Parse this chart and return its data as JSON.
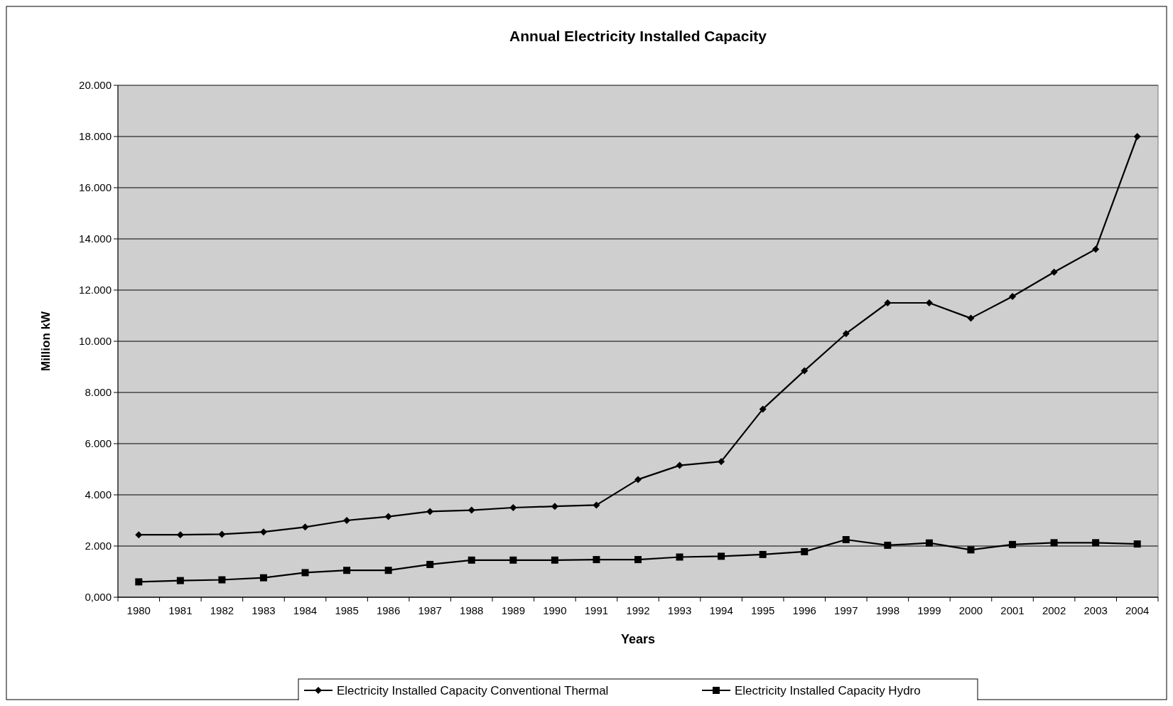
{
  "chart_data": {
    "type": "line",
    "title": "Annual Electricity Installed Capacity",
    "xlabel": "Years",
    "ylabel": "Million kW",
    "categories": [
      "1980",
      "1981",
      "1982",
      "1983",
      "1984",
      "1985",
      "1986",
      "1987",
      "1988",
      "1989",
      "1990",
      "1991",
      "1992",
      "1993",
      "1994",
      "1995",
      "1996",
      "1997",
      "1998",
      "1999",
      "2000",
      "2001",
      "2002",
      "2003",
      "2004"
    ],
    "series": [
      {
        "name": "Electricity Installed Capacity Conventional Thermal",
        "color": "#000000",
        "marker": "diamond",
        "values": [
          2.44,
          2.44,
          2.46,
          2.55,
          2.74,
          3.0,
          3.15,
          3.35,
          3.4,
          3.5,
          3.55,
          3.6,
          4.6,
          5.15,
          5.3,
          7.35,
          8.85,
          10.3,
          11.5,
          11.5,
          10.9,
          11.75,
          12.7,
          13.6,
          18.0
        ]
      },
      {
        "name": "Electricity Installed Capacity Hydro",
        "color": "#000000",
        "marker": "square",
        "values": [
          0.6,
          0.65,
          0.68,
          0.76,
          0.96,
          1.05,
          1.05,
          1.28,
          1.45,
          1.45,
          1.45,
          1.47,
          1.47,
          1.57,
          1.6,
          1.67,
          1.78,
          2.25,
          2.03,
          2.12,
          1.85,
          2.06,
          2.13,
          2.13,
          2.08
        ]
      }
    ],
    "ylim": [
      0,
      20
    ],
    "yticks": [
      {
        "value": 0,
        "label": "0,000"
      },
      {
        "value": 2,
        "label": "2.000"
      },
      {
        "value": 4,
        "label": "4.000"
      },
      {
        "value": 6,
        "label": "6.000"
      },
      {
        "value": 8,
        "label": "8.000"
      },
      {
        "value": 10,
        "label": "10.000"
      },
      {
        "value": 12,
        "label": "12.000"
      },
      {
        "value": 14,
        "label": "14.000"
      },
      {
        "value": 16,
        "label": "16.000"
      },
      {
        "value": 18,
        "label": "18.000"
      },
      {
        "value": 20,
        "label": "20.000"
      }
    ],
    "grid": "y",
    "legend": "bottom",
    "line_style": "solid"
  }
}
